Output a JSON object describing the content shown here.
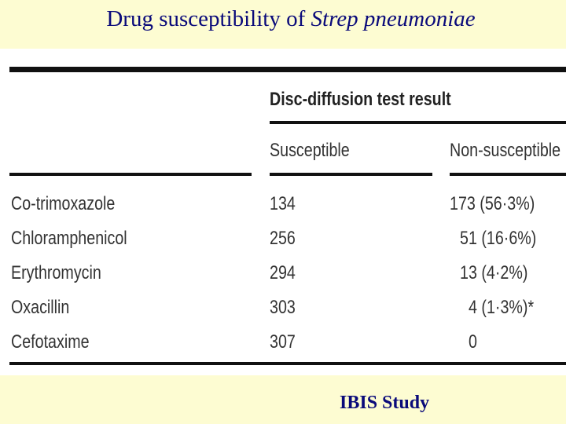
{
  "header": {
    "title": "Drug susceptibility of ",
    "title_italic": "Strep pneumoniae"
  },
  "table": {
    "group_header": "Disc-diffusion test result",
    "columns": [
      "Susceptible",
      "Non-susceptible"
    ],
    "rows": [
      [
        "Co-trimoxazole",
        "134",
        "173 (56·3%)"
      ],
      [
        "Chloramphenicol",
        "256",
        "51 (16·6%)"
      ],
      [
        "Erythromycin",
        "294",
        "13 (4·2%)"
      ],
      [
        "Oxacillin",
        "303",
        "4 (1·3%)*"
      ],
      [
        "Cefotaxime",
        "307",
        "0"
      ]
    ]
  },
  "footer": {
    "source": "IBIS Study"
  }
}
